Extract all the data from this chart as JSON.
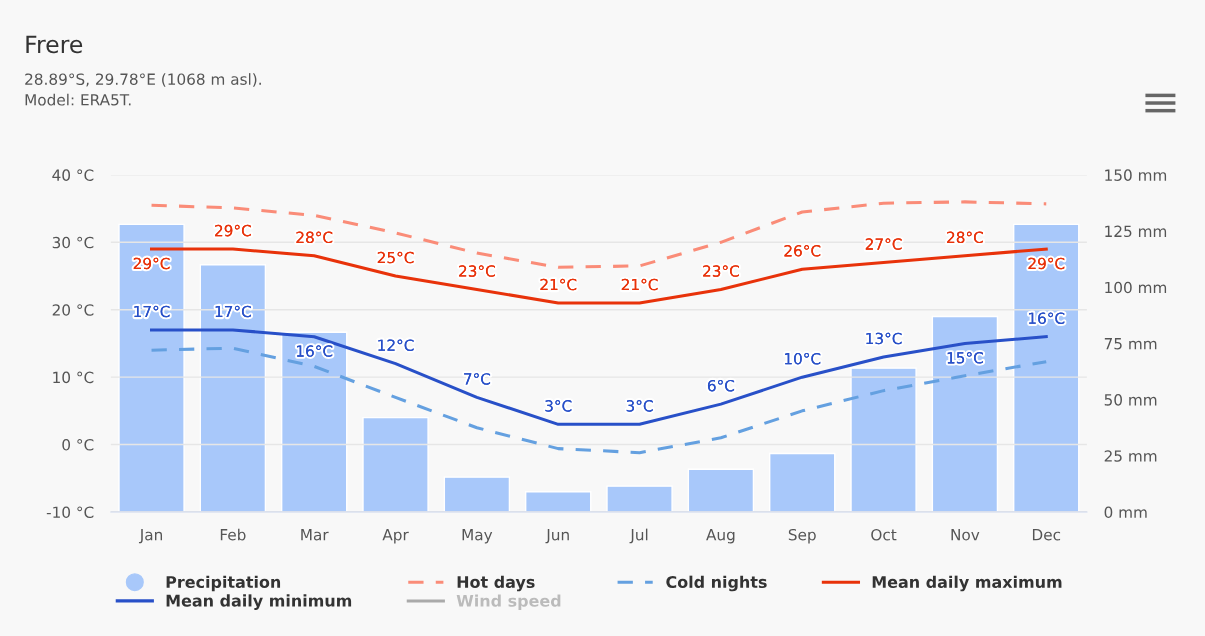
{
  "chart_data": {
    "type": "line",
    "title": "Frere",
    "subtitle": "28.89°S, 29.78°E (1068 m asl).\nModel: ERA5T.",
    "categories": [
      "Jan",
      "Feb",
      "Mar",
      "Apr",
      "May",
      "Jun",
      "Jul",
      "Aug",
      "Sep",
      "Oct",
      "Nov",
      "Dec"
    ],
    "series": [
      {
        "name": "Precipitation",
        "type": "bar",
        "axis": "y2",
        "color": "#a8c8fa",
        "values": [
          128,
          110,
          80,
          42,
          15.5,
          9,
          11.5,
          19,
          26,
          64,
          87,
          128
        ]
      },
      {
        "name": "Hot days",
        "color": "#fa8c78",
        "line_style": "dashed",
        "values": [
          35.5,
          35.1,
          34,
          31.4,
          28.4,
          26.3,
          26.5,
          30,
          34.5,
          35.8,
          36,
          35.7
        ]
      },
      {
        "name": "Cold nights",
        "color": "#64a0e0",
        "line_style": "dashed",
        "values": [
          14,
          14.3,
          11.6,
          7,
          2.5,
          -0.6,
          -1.2,
          1,
          5,
          8,
          10.2,
          12.3
        ]
      },
      {
        "name": "Mean daily maximum",
        "color": "#e8320a",
        "line_style": "solid",
        "values": [
          29,
          29,
          28,
          25,
          23,
          21,
          21,
          23,
          26,
          27,
          28,
          29
        ],
        "value_labels": [
          "29°C",
          "29°C",
          "28°C",
          "25°C",
          "23°C",
          "21°C",
          "21°C",
          "23°C",
          "26°C",
          "27°C",
          "28°C",
          "29°C"
        ]
      },
      {
        "name": "Mean daily minimum",
        "color": "#2850c8",
        "line_style": "solid",
        "values": [
          17,
          17,
          16,
          12,
          7,
          3,
          3,
          6,
          10,
          13,
          15,
          16
        ],
        "value_labels": [
          "17°C",
          "17°C",
          "16°C",
          "12°C",
          "7°C",
          "3°C",
          "3°C",
          "6°C",
          "10°C",
          "13°C",
          "15°C",
          "16°C"
        ]
      },
      {
        "name": "Wind speed",
        "color": "#aaaaaa",
        "line_style": "solid",
        "values": [
          null,
          null,
          null,
          null,
          null,
          null,
          null,
          null,
          null,
          null,
          null,
          null
        ]
      }
    ],
    "ylim": [
      -10,
      40
    ],
    "yticks": [
      {
        "value": -10,
        "label": "-10 °C"
      },
      {
        "value": 0,
        "label": "0 °C"
      },
      {
        "value": 10,
        "label": "10 °C"
      },
      {
        "value": 20,
        "label": "20 °C"
      },
      {
        "value": 30,
        "label": "30 °C"
      },
      {
        "value": 40,
        "label": "40 °C"
      }
    ],
    "y2lim": [
      0,
      150
    ],
    "y2ticks": [
      {
        "value": 0,
        "label": "0 mm"
      },
      {
        "value": 25,
        "label": "25 mm"
      },
      {
        "value": 50,
        "label": "50 mm"
      },
      {
        "value": 75,
        "label": "75 mm"
      },
      {
        "value": 100,
        "label": "100 mm"
      },
      {
        "value": 125,
        "label": "125 mm"
      },
      {
        "value": 150,
        "label": "150 mm"
      }
    ],
    "grid": "y",
    "legend": "bottom",
    "marker": "none"
  }
}
